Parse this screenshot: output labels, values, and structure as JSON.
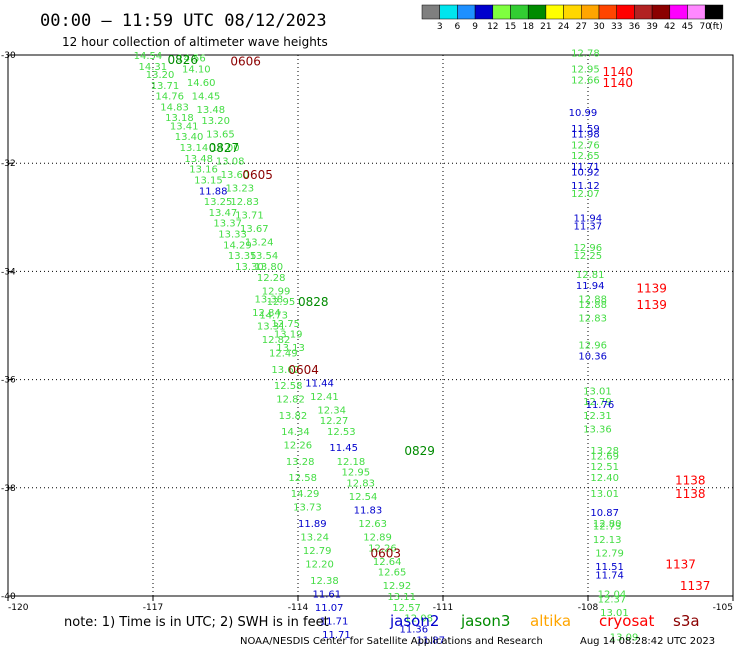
{
  "header": {
    "title": "00:00 – 11:59 UTC 08/12/2023",
    "subtitle": "12 hour collection of altimeter wave heights"
  },
  "colorbar": {
    "colors": [
      "#7f7f7f",
      "#00e5ee",
      "#1e90ff",
      "#0000cd",
      "#7fff3f",
      "#32cd32",
      "#008b00",
      "#ffff00",
      "#ffd700",
      "#ffa500",
      "#ff4500",
      "#ff0000",
      "#b22222",
      "#8b0000",
      "#ff00ff",
      "#ff88ff",
      "#000000"
    ],
    "ticks": [
      "3",
      "6",
      "9",
      "12",
      "15",
      "18",
      "21",
      "24",
      "27",
      "30",
      "33",
      "36",
      "39",
      "42",
      "45",
      "70"
    ],
    "unit": "(ft)"
  },
  "footer": {
    "note": "note:  1) Time is in UTC;  2) SWH is in feet",
    "missions": [
      {
        "name": "jason2",
        "color": "#0000cd"
      },
      {
        "name": "jason3",
        "color": "#008b00"
      },
      {
        "name": "altika",
        "color": "#ffa500"
      },
      {
        "name": "cryosat",
        "color": "#ff0000"
      },
      {
        "name": "s3a",
        "color": "#8b0000"
      }
    ],
    "credit_left": "NOAA/NESDIS Center for Satellite Applications and Research",
    "credit_right": "Aug 14 08:28:42 UTC 2023"
  },
  "colors": {
    "green": "#44dd44",
    "blue": "#0000cd",
    "darkgreen": "#008b00",
    "red": "#ff0000",
    "darkred": "#8b0000"
  },
  "chart_data": {
    "type": "scatter",
    "xlim": [
      -120,
      -105
    ],
    "ylim": [
      -40,
      -30
    ],
    "x_ticks": [
      "-120",
      "-117",
      "-114",
      "-111",
      "-108",
      "-105"
    ],
    "y_ticks": [
      "-30",
      "-32",
      "-34",
      "-36",
      "-38",
      "-40"
    ],
    "time_labels": [
      {
        "text": "0826",
        "lon": -116.7,
        "lat": -30.07,
        "c": "darkgreen"
      },
      {
        "text": "0606",
        "lon": -115.4,
        "lat": -30.1,
        "c": "darkred"
      },
      {
        "text": "0827",
        "lon": -115.85,
        "lat": -31.7,
        "c": "darkgreen"
      },
      {
        "text": "0605",
        "lon": -115.15,
        "lat": -32.2,
        "c": "darkred"
      },
      {
        "text": "0828",
        "lon": -114.0,
        "lat": -34.55,
        "c": "darkgreen"
      },
      {
        "text": "0604",
        "lon": -114.2,
        "lat": -35.8,
        "c": "darkred"
      },
      {
        "text": "0829",
        "lon": -111.8,
        "lat": -37.3,
        "c": "darkgreen"
      },
      {
        "text": "0603",
        "lon": -112.5,
        "lat": -39.2,
        "c": "darkred"
      },
      {
        "text": "1140",
        "lon": -107.7,
        "lat": -30.3,
        "c": "red"
      },
      {
        "text": "1140",
        "lon": -107.7,
        "lat": -30.5,
        "c": "red"
      },
      {
        "text": "1139",
        "lon": -107.0,
        "lat": -34.3,
        "c": "red"
      },
      {
        "text": "1139",
        "lon": -107.0,
        "lat": -34.6,
        "c": "red"
      },
      {
        "text": "1138",
        "lon": -106.2,
        "lat": -37.85,
        "c": "red"
      },
      {
        "text": "1138",
        "lon": -106.2,
        "lat": -38.1,
        "c": "red"
      },
      {
        "text": "1137",
        "lon": -106.4,
        "lat": -39.4,
        "c": "red"
      },
      {
        "text": "1137",
        "lon": -106.1,
        "lat": -39.8,
        "c": "red"
      }
    ],
    "points": [
      {
        "lon": -117.4,
        "lat": -30.0,
        "v": "14.54",
        "c": "green"
      },
      {
        "lon": -117.3,
        "lat": -30.2,
        "v": "14.31",
        "c": "green"
      },
      {
        "lon": -117.15,
        "lat": -30.35,
        "v": "13.20",
        "c": "green"
      },
      {
        "lon": -117.05,
        "lat": -30.55,
        "v": "13.71",
        "c": "green"
      },
      {
        "lon": -116.95,
        "lat": -30.75,
        "v": "14.76",
        "c": "green"
      },
      {
        "lon": -116.85,
        "lat": -30.95,
        "v": "14.83",
        "c": "green"
      },
      {
        "lon": -116.75,
        "lat": -31.15,
        "v": "13.18",
        "c": "green"
      },
      {
        "lon": -116.65,
        "lat": -31.3,
        "v": "13.41",
        "c": "green"
      },
      {
        "lon": -116.55,
        "lat": -31.5,
        "v": "13.40",
        "c": "green"
      },
      {
        "lon": -116.45,
        "lat": -31.7,
        "v": "13.14",
        "c": "green"
      },
      {
        "lon": -116.35,
        "lat": -31.9,
        "v": "13.48",
        "c": "green"
      },
      {
        "lon": -116.25,
        "lat": -32.1,
        "v": "13.16",
        "c": "green"
      },
      {
        "lon": -116.15,
        "lat": -32.3,
        "v": "13.15",
        "c": "green"
      },
      {
        "lon": -116.05,
        "lat": -32.5,
        "v": "11.88",
        "c": "blue"
      },
      {
        "lon": -115.95,
        "lat": -32.7,
        "v": "13.25",
        "c": "green"
      },
      {
        "lon": -115.85,
        "lat": -32.9,
        "v": "13.47",
        "c": "green"
      },
      {
        "lon": -115.75,
        "lat": -33.1,
        "v": "13.37",
        "c": "green"
      },
      {
        "lon": -115.65,
        "lat": -33.3,
        "v": "13.33",
        "c": "green"
      },
      {
        "lon": -115.55,
        "lat": -33.5,
        "v": "14.29",
        "c": "green"
      },
      {
        "lon": -115.45,
        "lat": -33.7,
        "v": "13.35",
        "c": "green"
      },
      {
        "lon": -115.3,
        "lat": -33.9,
        "v": "13.30",
        "c": "green"
      },
      {
        "lon": -116.5,
        "lat": -30.05,
        "v": "14.56",
        "c": "green"
      },
      {
        "lon": -116.4,
        "lat": -30.25,
        "v": "14.10",
        "c": "green"
      },
      {
        "lon": -116.3,
        "lat": -30.5,
        "v": "14.60",
        "c": "green"
      },
      {
        "lon": -116.2,
        "lat": -30.75,
        "v": "14.45",
        "c": "green"
      },
      {
        "lon": -116.1,
        "lat": -31.0,
        "v": "13.48",
        "c": "green"
      },
      {
        "lon": -116.0,
        "lat": -31.2,
        "v": "13.20",
        "c": "green"
      },
      {
        "lon": -115.9,
        "lat": -31.45,
        "v": "13.65",
        "c": "green"
      },
      {
        "lon": -115.8,
        "lat": -31.7,
        "v": "14.00",
        "c": "green"
      },
      {
        "lon": -115.7,
        "lat": -31.95,
        "v": "13.08",
        "c": "green"
      },
      {
        "lon": -115.6,
        "lat": -32.2,
        "v": "13.60",
        "c": "green"
      },
      {
        "lon": -115.5,
        "lat": -32.45,
        "v": "13.23",
        "c": "green"
      },
      {
        "lon": -115.4,
        "lat": -32.7,
        "v": "12.83",
        "c": "green"
      },
      {
        "lon": -115.3,
        "lat": -32.95,
        "v": "13.71",
        "c": "green"
      },
      {
        "lon": -115.2,
        "lat": -33.2,
        "v": "13.67",
        "c": "green"
      },
      {
        "lon": -115.1,
        "lat": -33.45,
        "v": "13.24",
        "c": "green"
      },
      {
        "lon": -115.0,
        "lat": -33.7,
        "v": "13.54",
        "c": "green"
      },
      {
        "lon": -114.9,
        "lat": -33.9,
        "v": "13.80",
        "c": "green"
      },
      {
        "lon": -114.85,
        "lat": -34.1,
        "v": "12.28",
        "c": "green"
      },
      {
        "lon": -114.75,
        "lat": -34.35,
        "v": "12.99",
        "c": "green"
      },
      {
        "lon": -114.65,
        "lat": -34.55,
        "v": "12.95",
        "c": "green"
      },
      {
        "lon": -114.9,
        "lat": -34.5,
        "v": "13.38",
        "c": "green"
      },
      {
        "lon": -114.8,
        "lat": -34.8,
        "v": "14.73",
        "c": "green"
      },
      {
        "lon": -114.95,
        "lat": -34.75,
        "v": "12.84",
        "c": "green"
      },
      {
        "lon": -114.85,
        "lat": -35.0,
        "v": "13.31",
        "c": "green"
      },
      {
        "lon": -114.55,
        "lat": -34.95,
        "v": "12.75",
        "c": "green"
      },
      {
        "lon": -114.5,
        "lat": -35.15,
        "v": "13.19",
        "c": "green"
      },
      {
        "lon": -114.75,
        "lat": -35.25,
        "v": "12.82",
        "c": "green"
      },
      {
        "lon": -114.45,
        "lat": -35.4,
        "v": "13.13",
        "c": "green"
      },
      {
        "lon": -114.6,
        "lat": -35.5,
        "v": "12.49",
        "c": "green"
      },
      {
        "lon": -114.55,
        "lat": -35.8,
        "v": "13.62",
        "c": "green"
      },
      {
        "lon": -114.5,
        "lat": -36.1,
        "v": "12.58",
        "c": "green"
      },
      {
        "lon": -114.45,
        "lat": -36.35,
        "v": "12.82",
        "c": "green"
      },
      {
        "lon": -114.4,
        "lat": -36.65,
        "v": "13.82",
        "c": "green"
      },
      {
        "lon": -114.35,
        "lat": -36.95,
        "v": "14.34",
        "c": "green"
      },
      {
        "lon": -114.3,
        "lat": -37.2,
        "v": "12.26",
        "c": "green"
      },
      {
        "lon": -114.25,
        "lat": -37.5,
        "v": "13.28",
        "c": "green"
      },
      {
        "lon": -114.2,
        "lat": -37.8,
        "v": "12.58",
        "c": "green"
      },
      {
        "lon": -114.15,
        "lat": -38.1,
        "v": "14.29",
        "c": "green"
      },
      {
        "lon": -114.1,
        "lat": -38.35,
        "v": "13.73",
        "c": "green"
      },
      {
        "lon": -114.0,
        "lat": -38.65,
        "v": "11.89",
        "c": "blue"
      },
      {
        "lon": -113.95,
        "lat": -38.9,
        "v": "13.24",
        "c": "green"
      },
      {
        "lon": -113.9,
        "lat": -39.15,
        "v": "12.79",
        "c": "green"
      },
      {
        "lon": -113.85,
        "lat": -39.4,
        "v": "12.20",
        "c": "green"
      },
      {
        "lon": -113.75,
        "lat": -39.7,
        "v": "12.38",
        "c": "green"
      },
      {
        "lon": -113.7,
        "lat": -39.95,
        "v": "11.61",
        "c": "blue"
      },
      {
        "lon": -113.65,
        "lat": -40.2,
        "v": "11.07",
        "c": "blue"
      },
      {
        "lon": -113.55,
        "lat": -40.45,
        "v": "11.71",
        "c": "blue"
      },
      {
        "lon": -113.5,
        "lat": -40.7,
        "v": "11.71",
        "c": "blue"
      },
      {
        "lon": -113.85,
        "lat": -36.05,
        "v": "11.44",
        "c": "blue"
      },
      {
        "lon": -113.75,
        "lat": -36.3,
        "v": "12.41",
        "c": "green"
      },
      {
        "lon": -113.6,
        "lat": -36.55,
        "v": "12.34",
        "c": "green"
      },
      {
        "lon": -113.55,
        "lat": -36.75,
        "v": "12.27",
        "c": "green"
      },
      {
        "lon": -113.4,
        "lat": -36.95,
        "v": "12.53",
        "c": "green"
      },
      {
        "lon": -113.35,
        "lat": -37.25,
        "v": "11.45",
        "c": "blue"
      },
      {
        "lon": -113.2,
        "lat": -37.5,
        "v": "12.18",
        "c": "green"
      },
      {
        "lon": -113.1,
        "lat": -37.7,
        "v": "12.95",
        "c": "green"
      },
      {
        "lon": -113.0,
        "lat": -37.9,
        "v": "12.83",
        "c": "green"
      },
      {
        "lon": -112.95,
        "lat": -38.15,
        "v": "12.54",
        "c": "green"
      },
      {
        "lon": -112.85,
        "lat": -38.4,
        "v": "11.83",
        "c": "blue"
      },
      {
        "lon": -112.75,
        "lat": -38.65,
        "v": "12.63",
        "c": "green"
      },
      {
        "lon": -112.65,
        "lat": -38.9,
        "v": "12.89",
        "c": "green"
      },
      {
        "lon": -112.55,
        "lat": -39.1,
        "v": "12.26",
        "c": "green"
      },
      {
        "lon": -112.45,
        "lat": -39.35,
        "v": "12.64",
        "c": "green"
      },
      {
        "lon": -112.35,
        "lat": -39.55,
        "v": "12.65",
        "c": "green"
      },
      {
        "lon": -112.25,
        "lat": -39.8,
        "v": "12.92",
        "c": "green"
      },
      {
        "lon": -112.15,
        "lat": -40.0,
        "v": "13.11",
        "c": "green"
      },
      {
        "lon": -112.05,
        "lat": -40.2,
        "v": "12.57",
        "c": "green"
      },
      {
        "lon": -111.8,
        "lat": -40.4,
        "v": "12.08",
        "c": "green"
      },
      {
        "lon": -111.9,
        "lat": -40.6,
        "v": "11.36",
        "c": "blue"
      },
      {
        "lon": -111.55,
        "lat": -40.8,
        "v": "11.87",
        "c": "blue"
      },
      {
        "lon": -108.35,
        "lat": -29.95,
        "v": "12.78",
        "c": "green"
      },
      {
        "lon": -108.35,
        "lat": -30.25,
        "v": "12.95",
        "c": "green"
      },
      {
        "lon": -108.35,
        "lat": -30.45,
        "v": "12.66",
        "c": "green"
      },
      {
        "lon": -108.4,
        "lat": -31.05,
        "v": "10.99",
        "c": "blue"
      },
      {
        "lon": -108.35,
        "lat": -31.35,
        "v": "11.59",
        "c": "blue"
      },
      {
        "lon": -108.35,
        "lat": -31.45,
        "v": "11.98",
        "c": "blue"
      },
      {
        "lon": -108.35,
        "lat": -31.65,
        "v": "12.76",
        "c": "green"
      },
      {
        "lon": -108.35,
        "lat": -31.85,
        "v": "12.65",
        "c": "green"
      },
      {
        "lon": -108.35,
        "lat": -32.05,
        "v": "11.71",
        "c": "blue"
      },
      {
        "lon": -108.35,
        "lat": -32.15,
        "v": "10.92",
        "c": "blue"
      },
      {
        "lon": -108.35,
        "lat": -32.4,
        "v": "11.12",
        "c": "blue"
      },
      {
        "lon": -108.35,
        "lat": -32.55,
        "v": "12.07",
        "c": "green"
      },
      {
        "lon": -108.3,
        "lat": -33.0,
        "v": "11.94",
        "c": "blue"
      },
      {
        "lon": -108.3,
        "lat": -33.15,
        "v": "11.37",
        "c": "blue"
      },
      {
        "lon": -108.3,
        "lat": -33.55,
        "v": "12.96",
        "c": "green"
      },
      {
        "lon": -108.3,
        "lat": -33.7,
        "v": "12.25",
        "c": "green"
      },
      {
        "lon": -108.25,
        "lat": -34.05,
        "v": "12.81",
        "c": "green"
      },
      {
        "lon": -108.25,
        "lat": -34.25,
        "v": "11.94",
        "c": "blue"
      },
      {
        "lon": -108.2,
        "lat": -34.5,
        "v": "12.88",
        "c": "green"
      },
      {
        "lon": -108.2,
        "lat": -34.6,
        "v": "12.88",
        "c": "green"
      },
      {
        "lon": -108.2,
        "lat": -34.85,
        "v": "12.83",
        "c": "green"
      },
      {
        "lon": -108.2,
        "lat": -35.35,
        "v": "12.96",
        "c": "green"
      },
      {
        "lon": -108.2,
        "lat": -35.55,
        "v": "10.36",
        "c": "blue"
      },
      {
        "lon": -108.1,
        "lat": -36.2,
        "v": "13.01",
        "c": "green"
      },
      {
        "lon": -108.1,
        "lat": -36.4,
        "v": "12.79",
        "c": "green"
      },
      {
        "lon": -108.05,
        "lat": -36.45,
        "v": "11.76",
        "c": "blue"
      },
      {
        "lon": -108.1,
        "lat": -36.65,
        "v": "12.31",
        "c": "green"
      },
      {
        "lon": -108.1,
        "lat": -36.9,
        "v": "13.36",
        "c": "green"
      },
      {
        "lon": -107.95,
        "lat": -37.3,
        "v": "13.28",
        "c": "green"
      },
      {
        "lon": -107.95,
        "lat": -37.4,
        "v": "12.69",
        "c": "green"
      },
      {
        "lon": -107.95,
        "lat": -37.6,
        "v": "12.51",
        "c": "green"
      },
      {
        "lon": -107.95,
        "lat": -37.8,
        "v": "12.40",
        "c": "green"
      },
      {
        "lon": -107.95,
        "lat": -38.1,
        "v": "13.01",
        "c": "green"
      },
      {
        "lon": -107.95,
        "lat": -38.45,
        "v": "10.87",
        "c": "blue"
      },
      {
        "lon": -107.9,
        "lat": -38.7,
        "v": "12.73",
        "c": "green"
      },
      {
        "lon": -107.9,
        "lat": -38.65,
        "v": "12.80",
        "c": "green"
      },
      {
        "lon": -107.9,
        "lat": -38.95,
        "v": "12.13",
        "c": "green"
      },
      {
        "lon": -107.85,
        "lat": -39.2,
        "v": "12.79",
        "c": "green"
      },
      {
        "lon": -107.85,
        "lat": -39.45,
        "v": "11.51",
        "c": "blue"
      },
      {
        "lon": -107.85,
        "lat": -39.6,
        "v": "11.74",
        "c": "blue"
      },
      {
        "lon": -107.8,
        "lat": -39.95,
        "v": "12.04",
        "c": "green"
      },
      {
        "lon": -107.8,
        "lat": -40.05,
        "v": "12.37",
        "c": "green"
      },
      {
        "lon": -107.75,
        "lat": -40.3,
        "v": "13.01",
        "c": "green"
      },
      {
        "lon": -107.55,
        "lat": -40.75,
        "v": "13.09",
        "c": "green"
      }
    ]
  }
}
